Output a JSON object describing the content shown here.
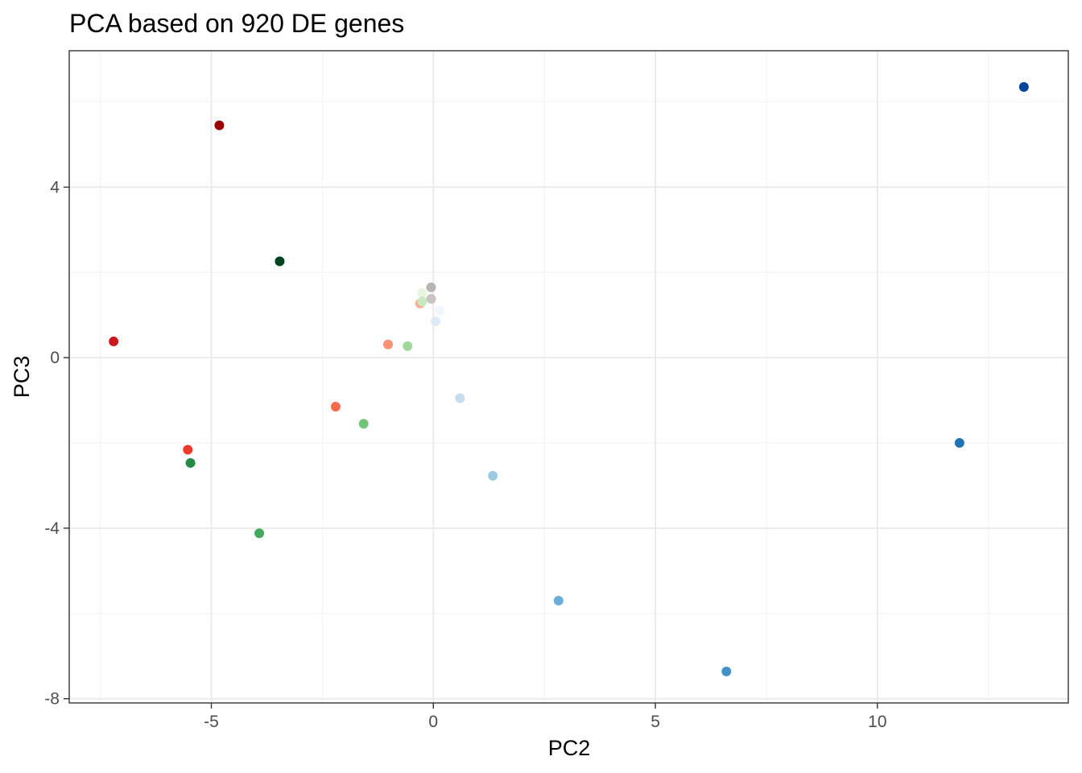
{
  "chart_data": {
    "type": "scatter",
    "title": "PCA based on 920 DE genes",
    "xlabel": "PC2",
    "ylabel": "PC3",
    "xlim": [
      -8.2,
      14.3
    ],
    "ylim": [
      -8.1,
      7.2
    ],
    "x_ticks": [
      -5,
      0,
      5,
      10
    ],
    "y_ticks": [
      -8,
      -4,
      0,
      4
    ],
    "x_tick_labels": [
      "-5",
      "0",
      "5",
      "10"
    ],
    "y_tick_labels": [
      "-8",
      "-4",
      "0",
      "4"
    ],
    "grid": true,
    "legend": "none",
    "points": [
      {
        "x": 13.3,
        "y": 6.35,
        "color": "#08459a"
      },
      {
        "x": -4.82,
        "y": 5.45,
        "color": "#990000"
      },
      {
        "x": -3.46,
        "y": 2.26,
        "color": "#00441b"
      },
      {
        "x": -0.05,
        "y": 1.65,
        "color": "#b8b4b4"
      },
      {
        "x": -0.25,
        "y": 1.52,
        "color": "#e5f5e0"
      },
      {
        "x": -0.05,
        "y": 1.38,
        "color": "#c8c4c4"
      },
      {
        "x": -0.3,
        "y": 1.27,
        "color": "#fcae91"
      },
      {
        "x": -0.25,
        "y": 1.32,
        "color": "#c7e9c0"
      },
      {
        "x": 0.15,
        "y": 1.1,
        "color": "#f0f6fd"
      },
      {
        "x": 0.05,
        "y": 0.85,
        "color": "#deebf7"
      },
      {
        "x": -7.2,
        "y": 0.38,
        "color": "#cb181d"
      },
      {
        "x": -1.02,
        "y": 0.31,
        "color": "#fc9272"
      },
      {
        "x": -0.58,
        "y": 0.27,
        "color": "#a1d99b"
      },
      {
        "x": 0.6,
        "y": -0.95,
        "color": "#c6dbef"
      },
      {
        "x": -2.2,
        "y": -1.15,
        "color": "#fb6a4a"
      },
      {
        "x": -1.57,
        "y": -1.55,
        "color": "#74c476"
      },
      {
        "x": 11.85,
        "y": -2.0,
        "color": "#2171b5"
      },
      {
        "x": -5.53,
        "y": -2.16,
        "color": "#ef3b2c"
      },
      {
        "x": -5.47,
        "y": -2.47,
        "color": "#238b45"
      },
      {
        "x": 1.34,
        "y": -2.77,
        "color": "#9ecae1"
      },
      {
        "x": -3.92,
        "y": -4.12,
        "color": "#41ab5d"
      },
      {
        "x": 2.82,
        "y": -5.7,
        "color": "#6baed6"
      },
      {
        "x": 6.6,
        "y": -7.36,
        "color": "#4292c6"
      }
    ]
  }
}
